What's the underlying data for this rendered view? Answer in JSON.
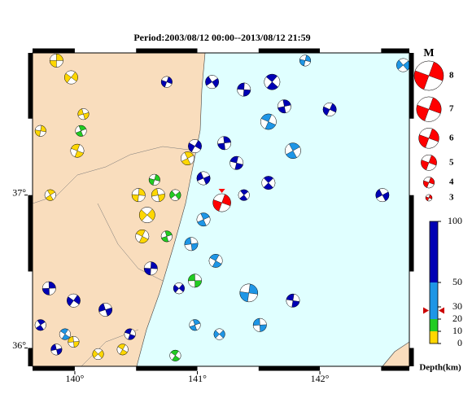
{
  "title": "Period:2003/08/12 00:00--2013/08/12 21:59",
  "xlim": [
    139.655,
    142.73
  ],
  "ylim": [
    35.88,
    37.93
  ],
  "lon_ticks": [
    {
      "value": 140,
      "label": "140°"
    },
    {
      "value": 141,
      "label": "141°"
    },
    {
      "value": 142,
      "label": "142°"
    }
  ],
  "lat_ticks": [
    {
      "value": 36,
      "label": "36°"
    },
    {
      "value": 37,
      "label": "37°"
    }
  ],
  "magnitude_title": "M",
  "magnitudes": [
    8,
    7,
    6,
    5,
    4,
    3
  ],
  "depth_title": "Depth(km)",
  "depth_lim": [
    0,
    100
  ],
  "depth_ticks": [
    0,
    10,
    20,
    30,
    50,
    100
  ],
  "depth_colors": [
    {
      "from": 0,
      "to": 10,
      "color": "#ffd700"
    },
    {
      "from": 10,
      "to": 20,
      "color": "#22cc22"
    },
    {
      "from": 20,
      "to": 50,
      "color": "#1e96e6"
    },
    {
      "from": 50,
      "to": 100,
      "color": "#0000b4"
    }
  ],
  "highlight": {
    "lon": 141.2,
    "lat": 36.95,
    "depth": 27,
    "mag": 5.5,
    "color": "#ff0000"
  },
  "events": [
    [
      139.85,
      37.88,
      5,
      4.5
    ],
    [
      139.97,
      37.77,
      5,
      4.5
    ],
    [
      140.07,
      37.53,
      5,
      4
    ],
    [
      140.02,
      37.29,
      5,
      4.5
    ],
    [
      139.8,
      37.0,
      5,
      4
    ],
    [
      140.52,
      37.0,
      5,
      4.5
    ],
    [
      140.59,
      36.87,
      5,
      5
    ],
    [
      140.68,
      37.0,
      5,
      4.5
    ],
    [
      140.55,
      36.73,
      5,
      4.5
    ],
    [
      140.92,
      37.24,
      5,
      4.5
    ],
    [
      139.72,
      37.42,
      5,
      4
    ],
    [
      140.19,
      35.96,
      5,
      4
    ],
    [
      139.99,
      36.04,
      5,
      4
    ],
    [
      140.39,
      35.99,
      5,
      4
    ],
    [
      140.05,
      37.42,
      15,
      4
    ],
    [
      140.65,
      37.1,
      15,
      4
    ],
    [
      140.82,
      37.0,
      15,
      4
    ],
    [
      140.98,
      36.44,
      15,
      4.5
    ],
    [
      140.82,
      35.95,
      15,
      4
    ],
    [
      140.75,
      36.73,
      15,
      4
    ],
    [
      140.75,
      37.74,
      70,
      4
    ],
    [
      141.12,
      37.74,
      70,
      4.5
    ],
    [
      141.38,
      37.69,
      70,
      4.5
    ],
    [
      141.61,
      37.74,
      70,
      5
    ],
    [
      141.71,
      37.58,
      70,
      4.5
    ],
    [
      142.08,
      37.56,
      70,
      4.5
    ],
    [
      142.51,
      37.0,
      70,
      4.5
    ],
    [
      141.78,
      36.31,
      70,
      4.5
    ],
    [
      141.58,
      37.08,
      70,
      4.5
    ],
    [
      141.22,
      37.34,
      70,
      4.5
    ],
    [
      140.98,
      37.32,
      70,
      4.5
    ],
    [
      141.05,
      37.11,
      70,
      4.5
    ],
    [
      141.32,
      37.21,
      70,
      4.5
    ],
    [
      141.38,
      37.0,
      70,
      4
    ],
    [
      139.79,
      36.39,
      70,
      4.5
    ],
    [
      139.99,
      36.31,
      70,
      4.5
    ],
    [
      140.25,
      36.25,
      70,
      4.5
    ],
    [
      140.45,
      36.09,
      70,
      4
    ],
    [
      139.72,
      36.15,
      70,
      4
    ],
    [
      140.62,
      36.52,
      70,
      4.5
    ],
    [
      140.85,
      36.39,
      70,
      4
    ],
    [
      139.85,
      35.99,
      70,
      4
    ],
    [
      141.58,
      37.48,
      40,
      5
    ],
    [
      141.78,
      37.29,
      40,
      5
    ],
    [
      141.42,
      36.36,
      40,
      5.5
    ],
    [
      141.18,
      36.09,
      40,
      4
    ],
    [
      140.95,
      36.68,
      40,
      4.5
    ],
    [
      141.15,
      36.57,
      40,
      4.5
    ],
    [
      141.05,
      36.84,
      40,
      4.5
    ],
    [
      141.88,
      37.88,
      40,
      4
    ],
    [
      142.68,
      37.85,
      40,
      4.5
    ],
    [
      141.51,
      36.15,
      40,
      4.5
    ],
    [
      139.92,
      36.09,
      40,
      4
    ],
    [
      140.98,
      36.15,
      40,
      4
    ]
  ]
}
